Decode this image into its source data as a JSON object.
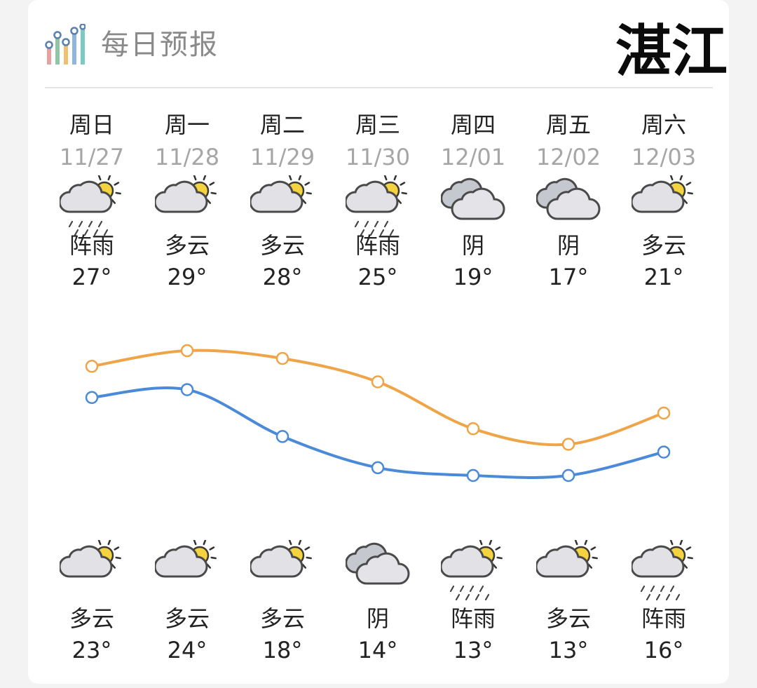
{
  "header": {
    "title": "每日预报",
    "city": "湛江",
    "icon": "bar-chart-icon"
  },
  "days": [
    {
      "weekday": "周日",
      "date": "11/27",
      "day_condition": "阵雨",
      "day_icon": "shower-rain-icon",
      "high": "27°",
      "night_condition": "多云",
      "night_icon": "partly-cloudy-icon",
      "low": "23°"
    },
    {
      "weekday": "周一",
      "date": "11/28",
      "day_condition": "多云",
      "day_icon": "partly-cloudy-icon",
      "high": "29°",
      "night_condition": "多云",
      "night_icon": "partly-cloudy-icon",
      "low": "24°"
    },
    {
      "weekday": "周二",
      "date": "11/29",
      "day_condition": "多云",
      "day_icon": "partly-cloudy-icon",
      "high": "28°",
      "night_condition": "多云",
      "night_icon": "partly-cloudy-icon",
      "low": "18°"
    },
    {
      "weekday": "周三",
      "date": "11/30",
      "day_condition": "阵雨",
      "day_icon": "shower-rain-icon",
      "high": "25°",
      "night_condition": "阴",
      "night_icon": "overcast-icon",
      "low": "14°"
    },
    {
      "weekday": "周四",
      "date": "12/01",
      "day_condition": "阴",
      "day_icon": "overcast-icon",
      "high": "19°",
      "night_condition": "阵雨",
      "night_icon": "shower-rain-icon",
      "low": "13°"
    },
    {
      "weekday": "周五",
      "date": "12/02",
      "day_condition": "阴",
      "day_icon": "overcast-icon",
      "high": "17°",
      "night_condition": "多云",
      "night_icon": "partly-cloudy-icon",
      "low": "13°"
    },
    {
      "weekday": "周六",
      "date": "12/03",
      "day_condition": "多云",
      "day_icon": "partly-cloudy-icon",
      "high": "21°",
      "night_condition": "阵雨",
      "night_icon": "shower-rain-icon",
      "low": "16°"
    }
  ],
  "chart_data": {
    "type": "line",
    "categories": [
      "11/27",
      "11/28",
      "11/29",
      "11/30",
      "12/01",
      "12/02",
      "12/03"
    ],
    "series": [
      {
        "values": [
          27,
          29,
          28,
          25,
          19,
          17,
          21
        ],
        "color": "#f0a448"
      },
      {
        "values": [
          23,
          24,
          18,
          14,
          13,
          13,
          16
        ],
        "color": "#4a8ad8"
      }
    ],
    "ylim": [
      13,
      29
    ]
  }
}
